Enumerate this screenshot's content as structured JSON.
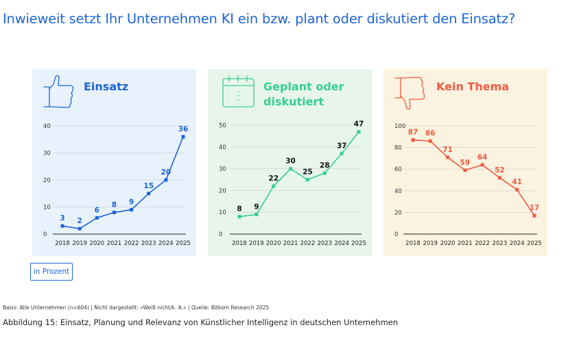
{
  "title": "Inwieweit setzt Ihr Unternehmen KI ein bzw. plant oder diskutiert den Einsatz?",
  "unit_button": "in Prozent",
  "basis": "Basis: Alle Unternehmen (n=604) | Nicht dargestellt: »Weiß nicht/k. A.« | Quelle: Bitkom Research 2025",
  "caption": "Abbildung 15: Einsatz, Planung und Relevanz von Künstlicher Intelligenz in deutschen Unternehmen",
  "panels": [
    {
      "title_lines": [
        "Einsatz"
      ],
      "icon": "thumbs-up-icon"
    },
    {
      "title_lines": [
        "Geplant oder",
        "diskutiert"
      ],
      "icon": "calendar-icon"
    },
    {
      "title_lines": [
        "Kein Thema"
      ],
      "icon": "thumbs-down-icon"
    }
  ],
  "chart_data": [
    {
      "type": "line",
      "title": "Einsatz",
      "x": [
        "2018",
        "2019",
        "2020",
        "2021",
        "2022",
        "2023",
        "2024",
        "2025"
      ],
      "values": [
        3,
        2,
        6,
        8,
        9,
        15,
        20,
        36
      ],
      "ylim": [
        0,
        40
      ],
      "yticks": [
        0,
        10,
        20,
        30,
        40
      ],
      "grid": true,
      "color": "#1c64d8",
      "label_color": "#1c64d8",
      "background": "#e8f2fc"
    },
    {
      "type": "line",
      "title": "Geplant oder diskutiert",
      "x": [
        "2018",
        "2019",
        "2020",
        "2021",
        "2022",
        "2023",
        "2024",
        "2025"
      ],
      "values": [
        8,
        9,
        22,
        30,
        25,
        28,
        37,
        47
      ],
      "ylim": [
        0,
        50
      ],
      "yticks": [
        0,
        10,
        20,
        30,
        40,
        50
      ],
      "grid": true,
      "color": "#36cf8f",
      "label_color": "#111111",
      "background": "#e7f5ea"
    },
    {
      "type": "line",
      "title": "Kein Thema",
      "x": [
        "2018",
        "2019",
        "2020",
        "2021",
        "2022",
        "2023",
        "2024",
        "2025"
      ],
      "values": [
        87,
        86,
        71,
        59,
        64,
        52,
        41,
        17
      ],
      "ylim": [
        0,
        100
      ],
      "yticks": [
        0,
        20,
        40,
        60,
        80,
        100
      ],
      "grid": true,
      "color": "#ee5a42",
      "label_color": "#ee5a42",
      "background": "#fbf3df"
    }
  ]
}
